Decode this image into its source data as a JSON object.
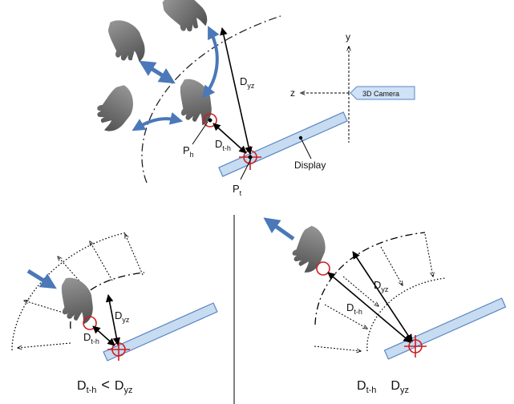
{
  "labels": {
    "d_yz": "D",
    "d_yz_sub": "yz",
    "d_th": "D",
    "d_th_sub": "t-h",
    "p_h": "P",
    "p_h_sub": "h",
    "p_t": "P",
    "p_t_sub": "t",
    "display": "Display",
    "axis_y": "y",
    "axis_z": "z",
    "camera": "3D Camera"
  },
  "captions": {
    "left_a": "D",
    "left_a_sub": "t-h",
    "left_op": "<",
    "left_b": "D",
    "left_b_sub": "yz",
    "right_a": "D",
    "right_a_sub": "t-h",
    "right_b": "D",
    "right_b_sub": "yz"
  },
  "colors": {
    "arrow_blue": "#4a78b8",
    "target_red": "#cc1f1f",
    "display_fill": "#c7dbf1",
    "display_stroke": "#5b86c4",
    "hand_gray": "#6d6d6d",
    "camera_fill": "#cfe2f6"
  }
}
